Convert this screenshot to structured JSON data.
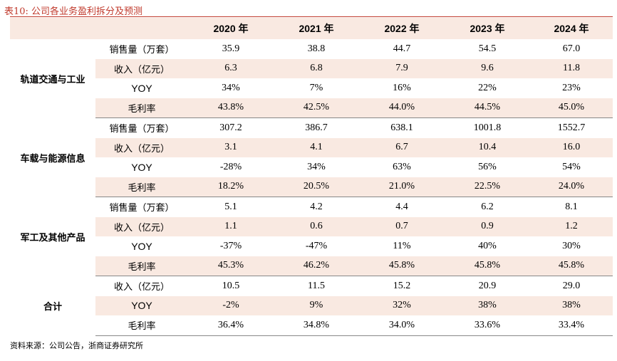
{
  "title": "表10:  公司各业务盈利拆分及预测",
  "header": {
    "blank": "",
    "years": [
      "2020 年",
      "2021 年",
      "2022 年",
      "2023 年",
      "2024 年"
    ]
  },
  "groups": [
    {
      "name": "轨道交通与工业",
      "rows": [
        {
          "metric": "销售量（万套）",
          "values": [
            "35.9",
            "38.8",
            "44.7",
            "54.5",
            "67.0"
          ]
        },
        {
          "metric": "收入（亿元）",
          "values": [
            "6.3",
            "6.8",
            "7.9",
            "9.6",
            "11.8"
          ]
        },
        {
          "metric": "YOY",
          "values": [
            "34%",
            "7%",
            "16%",
            "22%",
            "23%"
          ]
        },
        {
          "metric": "毛利率",
          "values": [
            "43.8%",
            "42.5%",
            "44.0%",
            "44.5%",
            "45.0%"
          ]
        }
      ]
    },
    {
      "name": "车载与能源信息",
      "rows": [
        {
          "metric": "销售量（万套）",
          "values": [
            "307.2",
            "386.7",
            "638.1",
            "1001.8",
            "1552.7"
          ]
        },
        {
          "metric": "收入（亿元）",
          "values": [
            "3.1",
            "4.1",
            "6.7",
            "10.4",
            "16.0"
          ]
        },
        {
          "metric": "YOY",
          "values": [
            "-28%",
            "34%",
            "63%",
            "56%",
            "54%"
          ]
        },
        {
          "metric": "毛利率",
          "values": [
            "18.2%",
            "20.5%",
            "21.0%",
            "22.5%",
            "24.0%"
          ]
        }
      ]
    },
    {
      "name": "军工及其他产品",
      "rows": [
        {
          "metric": "销售量（万套）",
          "values": [
            "5.1",
            "4.2",
            "4.4",
            "6.2",
            "8.1"
          ]
        },
        {
          "metric": "收入（亿元）",
          "values": [
            "1.1",
            "0.6",
            "0.7",
            "0.9",
            "1.2"
          ]
        },
        {
          "metric": "YOY",
          "values": [
            "-37%",
            "-47%",
            "11%",
            "40%",
            "30%"
          ]
        },
        {
          "metric": "毛利率",
          "values": [
            "45.3%",
            "46.2%",
            "45.8%",
            "45.8%",
            "45.8%"
          ]
        }
      ]
    },
    {
      "name": "合计",
      "rows": [
        {
          "metric": "收入（亿元）",
          "values": [
            "10.5",
            "11.5",
            "15.2",
            "20.9",
            "29.0"
          ]
        },
        {
          "metric": "YOY",
          "values": [
            "-2%",
            "9%",
            "32%",
            "38%",
            "38%"
          ]
        },
        {
          "metric": "毛利率",
          "values": [
            "36.4%",
            "34.8%",
            "34.0%",
            "33.6%",
            "33.4%"
          ]
        }
      ]
    }
  ],
  "source": "资料来源：公司公告，浙商证券研究所",
  "colors": {
    "accent": "#c0392b",
    "shade": "#f9e9e1",
    "rule": "#888888"
  }
}
